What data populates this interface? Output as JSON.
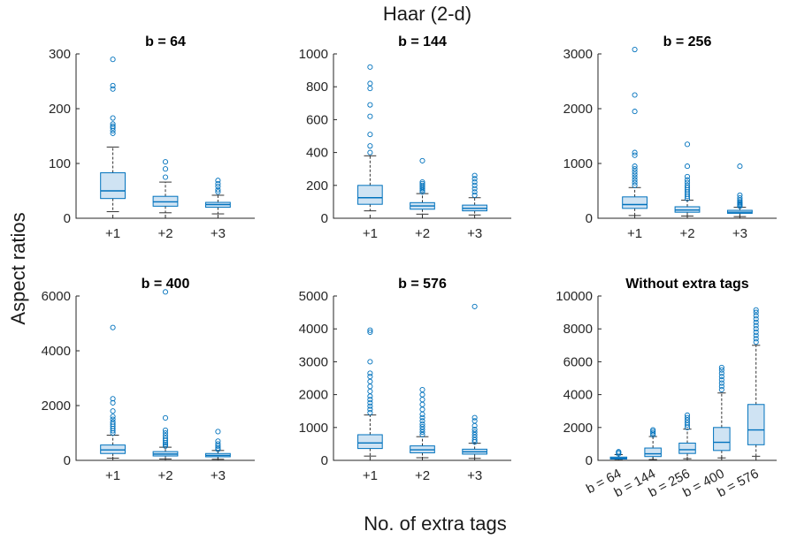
{
  "figure": {
    "title": "Haar (2-d)",
    "xlabel": "No. of extra tags",
    "ylabel": "Aspect ratios"
  },
  "colors": {
    "box_fill": "#cfe3f3",
    "box_edge": "#0072bd",
    "median": "#0072bd",
    "whisker": "#333333",
    "outlier": "#0072bd",
    "axis": "#262626"
  },
  "chart_data": [
    {
      "type": "box",
      "title": "b = 64",
      "categories": [
        "+1",
        "+2",
        "+3"
      ],
      "ylim": [
        0,
        300
      ],
      "yticks": [
        0,
        100,
        200,
        300
      ],
      "boxes": [
        {
          "q1": 36,
          "median": 50,
          "q3": 83,
          "whisker_low": 12,
          "whisker_high": 130,
          "outliers": [
            155,
            160,
            165,
            168,
            172,
            183,
            236,
            242,
            290
          ]
        },
        {
          "q1": 22,
          "median": 30,
          "q3": 40,
          "whisker_low": 10,
          "whisker_high": 66,
          "outliers": [
            75,
            90,
            103
          ]
        },
        {
          "q1": 20,
          "median": 25,
          "q3": 29,
          "whisker_low": 8,
          "whisker_high": 42,
          "outliers": [
            48,
            52,
            58,
            63,
            69
          ]
        }
      ]
    },
    {
      "type": "box",
      "title": "b = 144",
      "categories": [
        "+1",
        "+2",
        "+3"
      ],
      "ylim": [
        0,
        1000
      ],
      "yticks": [
        0,
        200,
        400,
        600,
        800,
        1000
      ],
      "boxes": [
        {
          "q1": 85,
          "median": 125,
          "q3": 200,
          "whisker_low": 45,
          "whisker_high": 380,
          "outliers": [
            400,
            440,
            510,
            620,
            690,
            790,
            820,
            920
          ]
        },
        {
          "q1": 55,
          "median": 75,
          "q3": 95,
          "whisker_low": 25,
          "whisker_high": 150,
          "outliers": [
            160,
            170,
            180,
            190,
            200,
            210,
            220,
            350
          ]
        },
        {
          "q1": 45,
          "median": 60,
          "q3": 80,
          "whisker_low": 20,
          "whisker_high": 125,
          "outliers": [
            140,
            160,
            180,
            200,
            220,
            240,
            260
          ]
        }
      ]
    },
    {
      "type": "box",
      "title": "b = 256",
      "categories": [
        "+1",
        "+2",
        "+3"
      ],
      "ylim": [
        0,
        3000
      ],
      "yticks": [
        0,
        1000,
        2000,
        3000
      ],
      "boxes": [
        {
          "q1": 180,
          "median": 250,
          "q3": 390,
          "whisker_low": 50,
          "whisker_high": 560,
          "outliers": [
            600,
            650,
            700,
            750,
            800,
            850,
            900,
            950,
            1150,
            1200,
            1950,
            2250,
            3080
          ]
        },
        {
          "q1": 110,
          "median": 150,
          "q3": 210,
          "whisker_low": 40,
          "whisker_high": 330,
          "outliers": [
            360,
            400,
            440,
            480,
            520,
            560,
            600,
            650,
            700,
            760,
            950,
            1350
          ]
        },
        {
          "q1": 90,
          "median": 110,
          "q3": 145,
          "whisker_low": 30,
          "whisker_high": 200,
          "outliers": [
            220,
            240,
            260,
            280,
            300,
            330,
            370,
            420,
            950
          ]
        }
      ]
    },
    {
      "type": "box",
      "title": "b = 400",
      "categories": [
        "+1",
        "+2",
        "+3"
      ],
      "ylim": [
        0,
        6000
      ],
      "yticks": [
        0,
        2000,
        4000,
        6000
      ],
      "boxes": [
        {
          "q1": 250,
          "median": 380,
          "q3": 560,
          "whisker_low": 80,
          "whisker_high": 920,
          "outliers": [
            1000,
            1080,
            1160,
            1240,
            1320,
            1400,
            1500,
            1600,
            1800,
            2100,
            2250,
            4850
          ]
        },
        {
          "q1": 160,
          "median": 230,
          "q3": 320,
          "whisker_low": 50,
          "whisker_high": 480,
          "outliers": [
            520,
            580,
            640,
            720,
            800,
            900,
            1000,
            1100,
            1550,
            6150
          ]
        },
        {
          "q1": 130,
          "median": 180,
          "q3": 250,
          "whisker_low": 40,
          "whisker_high": 360,
          "outliers": [
            400,
            450,
            520,
            600,
            700,
            1050
          ]
        }
      ]
    },
    {
      "type": "box",
      "title": "b = 576",
      "categories": [
        "+1",
        "+2",
        "+3"
      ],
      "ylim": [
        0,
        5000
      ],
      "yticks": [
        0,
        1000,
        2000,
        3000,
        4000,
        5000
      ],
      "boxes": [
        {
          "q1": 360,
          "median": 530,
          "q3": 780,
          "whisker_low": 130,
          "whisker_high": 1380,
          "outliers": [
            1450,
            1550,
            1650,
            1750,
            1850,
            1950,
            2100,
            2250,
            2400,
            2550,
            2650,
            3000,
            3900,
            3960
          ]
        },
        {
          "q1": 230,
          "median": 320,
          "q3": 440,
          "whisker_low": 80,
          "whisker_high": 720,
          "outliers": [
            780,
            860,
            940,
            1020,
            1100,
            1200,
            1300,
            1400,
            1550,
            1700,
            1850,
            2000,
            2150
          ]
        },
        {
          "q1": 190,
          "median": 260,
          "q3": 340,
          "whisker_low": 60,
          "whisker_high": 520,
          "outliers": [
            560,
            620,
            700,
            780,
            860,
            940,
            1050,
            1200,
            1300,
            4680
          ]
        }
      ]
    },
    {
      "type": "box",
      "title": "Without extra tags",
      "categories": [
        "b = 64",
        "b = 144",
        "b = 256",
        "b = 400",
        "b = 576"
      ],
      "ylim": [
        0,
        10000
      ],
      "yticks": [
        0,
        2000,
        4000,
        6000,
        8000,
        10000
      ],
      "boxes": [
        {
          "q1": 80,
          "median": 130,
          "q3": 200,
          "whisker_low": 20,
          "whisker_high": 350,
          "outliers": [
            400,
            480,
            520
          ]
        },
        {
          "q1": 230,
          "median": 400,
          "q3": 750,
          "whisker_low": 50,
          "whisker_high": 1450,
          "outliers": [
            1550,
            1650,
            1750,
            1850
          ]
        },
        {
          "q1": 420,
          "median": 650,
          "q3": 1050,
          "whisker_low": 100,
          "whisker_high": 1900,
          "outliers": [
            2000,
            2150,
            2300,
            2450,
            2600,
            2750
          ]
        },
        {
          "q1": 600,
          "median": 1100,
          "q3": 2000,
          "whisker_low": 150,
          "whisker_high": 4100,
          "outliers": [
            4300,
            4500,
            4700,
            4900,
            5100,
            5300,
            5500,
            5650
          ]
        },
        {
          "q1": 950,
          "median": 1850,
          "q3": 3400,
          "whisker_low": 250,
          "whisker_high": 7000,
          "outliers": [
            7200,
            7400,
            7600,
            7800,
            8000,
            8200,
            8400,
            8600,
            8800,
            9000,
            9150
          ]
        }
      ]
    }
  ]
}
